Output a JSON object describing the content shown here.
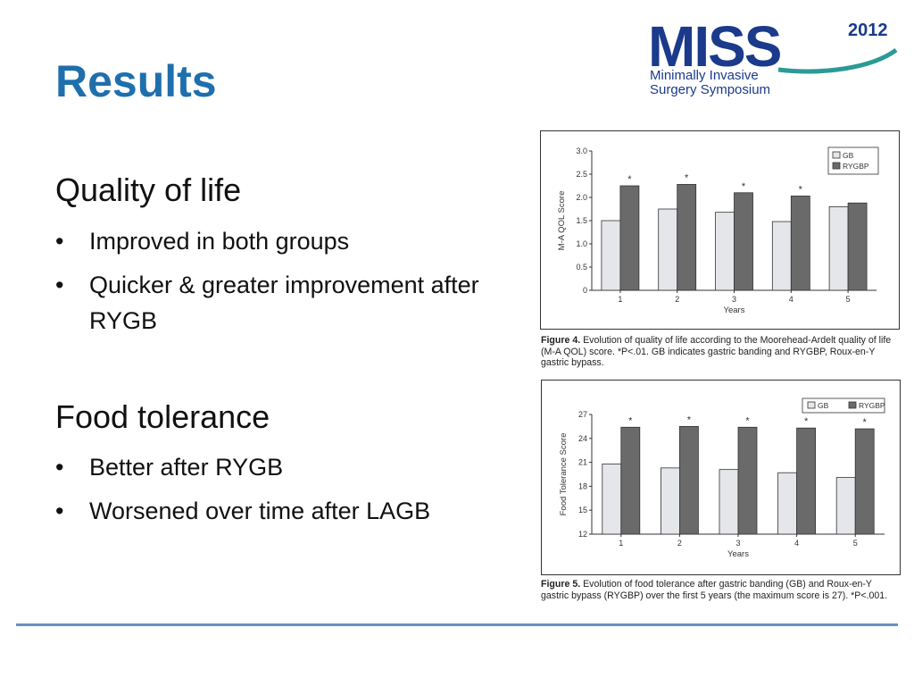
{
  "slide": {
    "title": "Results",
    "sections": [
      {
        "heading": "Quality of life",
        "bullets": [
          "Improved in both groups",
          "Quicker & greater improvement after RYGB"
        ]
      },
      {
        "heading": "Food tolerance",
        "bullets": [
          "Better after RYGB",
          "Worsened over time after LAGB"
        ]
      }
    ]
  },
  "logo": {
    "text": "MISS",
    "year": "2012",
    "line1": "Minimally Invasive",
    "line2": "Surgery Symposium",
    "color": "#1b3a8c",
    "accent": "#2c9a96"
  },
  "colors": {
    "title": "#1f6fad",
    "gb": "#e4e6ea",
    "rygb": "#6a6a6a",
    "divider": "#6a8fc2"
  },
  "chart_data": [
    {
      "type": "bar",
      "categories": [
        "1",
        "2",
        "3",
        "4",
        "5"
      ],
      "series": [
        {
          "name": "GB",
          "values": [
            1.5,
            1.75,
            1.68,
            1.48,
            1.8
          ]
        },
        {
          "name": "RYGBP",
          "values": [
            2.25,
            2.28,
            2.1,
            2.03,
            1.88
          ]
        }
      ],
      "significance": [
        "*",
        "*",
        "*",
        "*",
        ""
      ],
      "xlabel": "Years",
      "ylabel": "M-A QOL Score",
      "ylim": [
        0,
        3.0
      ],
      "yticks": [
        "0",
        "0.5",
        "1.0",
        "1.5",
        "2.0",
        "2.5",
        "3.0"
      ],
      "legend": "top-right",
      "caption_label": "Figure 4.",
      "caption": "Evolution of quality of life according to the Moorehead-Ardelt quality of life (M-A QOL) score. *P<.01. GB indicates gastric banding and RYGBP, Roux-en-Y gastric bypass."
    },
    {
      "type": "bar",
      "categories": [
        "1",
        "2",
        "3",
        "4",
        "5"
      ],
      "series": [
        {
          "name": "GB",
          "values": [
            20.8,
            20.3,
            20.1,
            19.7,
            19.1
          ]
        },
        {
          "name": "RYGBP",
          "values": [
            25.4,
            25.5,
            25.4,
            25.3,
            25.2
          ]
        }
      ],
      "significance": [
        "*",
        "*",
        "*",
        "*",
        "*"
      ],
      "xlabel": "Years",
      "ylabel": "Food Tolerance Score",
      "ylim": [
        12,
        27
      ],
      "yticks": [
        "12",
        "15",
        "18",
        "21",
        "24",
        "27"
      ],
      "legend": "top-right",
      "caption_label": "Figure 5.",
      "caption": "Evolution of food tolerance after gastric banding (GB) and Roux-en-Y gastric bypass (RYGBP) over the first 5 years (the maximum score is 27). *P<.001."
    }
  ]
}
